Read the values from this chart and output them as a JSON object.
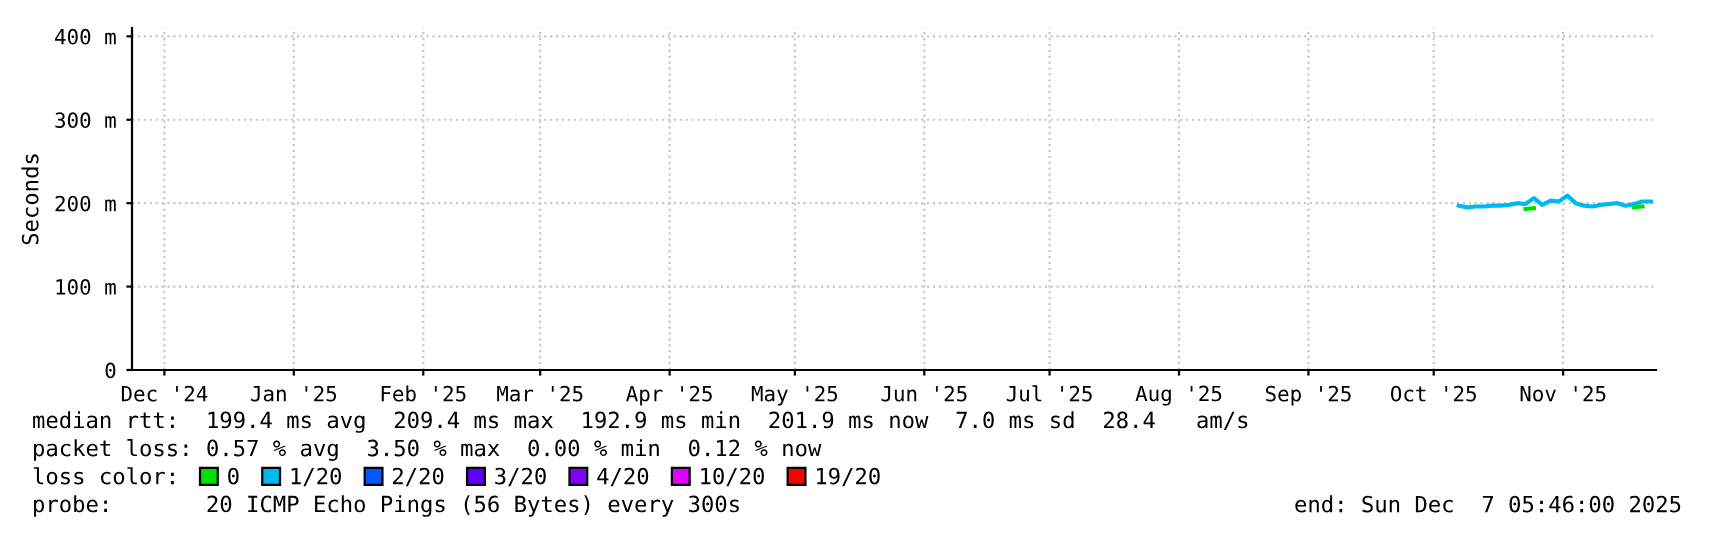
{
  "chart_data": {
    "type": "line",
    "ylabel": "Seconds",
    "x": [
      "2025-10-21",
      "2025-10-23",
      "2025-10-25",
      "2025-10-27",
      "2025-10-29",
      "2025-10-31",
      "2025-11-02",
      "2025-11-04",
      "2025-11-06",
      "2025-11-08",
      "2025-11-10",
      "2025-11-12",
      "2025-11-14",
      "2025-11-16",
      "2025-11-18",
      "2025-11-20",
      "2025-11-22",
      "2025-11-24",
      "2025-11-26",
      "2025-11-28",
      "2025-11-30",
      "2025-12-02",
      "2025-12-04",
      "2025-12-06"
    ],
    "series": [
      {
        "name": "0",
        "color": "#00e000",
        "values": [
          null,
          null,
          null,
          null,
          null,
          null,
          null,
          null,
          193,
          194,
          null,
          null,
          null,
          null,
          null,
          null,
          null,
          null,
          null,
          null,
          null,
          195,
          196,
          null
        ]
      },
      {
        "name": "1/20",
        "color": "#00b8f0",
        "values": [
          197,
          195,
          196,
          196,
          197,
          197,
          198,
          200,
          199,
          206,
          198,
          203,
          202,
          209,
          200,
          197,
          196,
          198,
          199,
          200,
          197,
          199,
          202,
          202
        ]
      },
      {
        "name": "2/20",
        "color": "#0059ff",
        "values": [
          null,
          null,
          null,
          null,
          null,
          null,
          null,
          null,
          null,
          null,
          null,
          null,
          null,
          null,
          null,
          null,
          null,
          null,
          null,
          null,
          null,
          null,
          null,
          null
        ]
      },
      {
        "name": "3/20",
        "color": "#5e00ff",
        "values": [
          null,
          null,
          null,
          null,
          null,
          null,
          null,
          null,
          null,
          null,
          null,
          null,
          null,
          null,
          null,
          null,
          null,
          null,
          null,
          null,
          null,
          null,
          null,
          null
        ]
      },
      {
        "name": "4/20",
        "color": "#7e00ff",
        "values": [
          null,
          null,
          null,
          null,
          null,
          null,
          null,
          null,
          null,
          null,
          null,
          null,
          null,
          null,
          null,
          null,
          null,
          null,
          null,
          null,
          null,
          null,
          null,
          null
        ]
      },
      {
        "name": "10/20",
        "color": "#dd00ff",
        "values": [
          null,
          null,
          null,
          null,
          null,
          null,
          null,
          null,
          null,
          null,
          null,
          null,
          null,
          null,
          null,
          null,
          null,
          null,
          null,
          null,
          null,
          null,
          null,
          null
        ]
      },
      {
        "name": "19/20",
        "color": "#ff0000",
        "values": [
          null,
          null,
          null,
          null,
          null,
          null,
          null,
          null,
          null,
          null,
          null,
          null,
          null,
          null,
          null,
          null,
          null,
          null,
          null,
          null,
          null,
          null,
          null,
          null
        ]
      }
    ],
    "legend": "bottom",
    "legend_title": "loss color:",
    "xlim": [
      "2024-12-07T05:46",
      "2025-12-07T05:46"
    ],
    "xticks": [
      {
        "value": "2024-12-15",
        "label": "Dec '24"
      },
      {
        "value": "2025-01-15",
        "label": "Jan '25"
      },
      {
        "value": "2025-02-15",
        "label": "Feb '25"
      },
      {
        "value": "2025-03-15",
        "label": "Mar '25"
      },
      {
        "value": "2025-04-15",
        "label": "Apr '25"
      },
      {
        "value": "2025-05-15",
        "label": "May '25"
      },
      {
        "value": "2025-06-15",
        "label": "Jun '25"
      },
      {
        "value": "2025-07-15",
        "label": "Jul '25"
      },
      {
        "value": "2025-08-15",
        "label": "Aug '25"
      },
      {
        "value": "2025-09-15",
        "label": "Sep '25"
      },
      {
        "value": "2025-10-15",
        "label": "Oct '25"
      },
      {
        "value": "2025-11-15",
        "label": "Nov '25"
      }
    ],
    "ylim": [
      0,
      410
    ],
    "yticks": [
      0,
      {
        "value": 100,
        "label": "100 m"
      },
      {
        "value": 200,
        "label": "200 m"
      },
      {
        "value": 300,
        "label": "300 m"
      },
      {
        "value": 400,
        "label": "400 m"
      }
    ],
    "grid": true,
    "annotations": [
      "median rtt:  199.4 ms avg  209.4 ms max  192.9 ms min  201.9 ms now  7.0 ms sd  28.4   am/s",
      "packet loss: 0.57 % avg  3.50 % max  0.00 % min  0.12 % now",
      "probe:       20 ICMP Echo Pings (56 Bytes) every 300s",
      "end: Sun Dec  7 05:46:00 2025"
    ]
  }
}
